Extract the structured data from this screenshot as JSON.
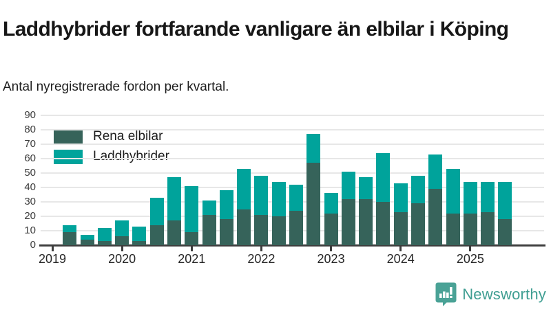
{
  "header": {
    "title": "Laddhybrider fortfarande vanligare än elbilar i Köping",
    "subtitle": "Antal nyregistrerade fordon per kvartal."
  },
  "chart_data": {
    "type": "bar",
    "stacked": true,
    "title": "Laddhybrider fortfarande vanligare än elbilar i Köping",
    "xlabel": "",
    "ylabel": "Antal nyregistrerade fordon per kvartal",
    "ylim": [
      0,
      90
    ],
    "grid": true,
    "legend_position": "inside-top-left",
    "categories": [
      "2019 Q2",
      "2019 Q3",
      "2019 Q4",
      "2020 Q1",
      "2020 Q2",
      "2020 Q3",
      "2020 Q4",
      "2021 Q1",
      "2021 Q2",
      "2021 Q3",
      "2021 Q4",
      "2022 Q1",
      "2022 Q2",
      "2022 Q3",
      "2022 Q4",
      "2023 Q1",
      "2023 Q2",
      "2023 Q3",
      "2023 Q4",
      "2024 Q1",
      "2024 Q2",
      "2024 Q3",
      "2024 Q4",
      "2025 Q1",
      "2025 Q2",
      "2025 Q3"
    ],
    "series": [
      {
        "name": "Rena elbilar",
        "color": "#36635a",
        "values": [
          9,
          4,
          3,
          6,
          3,
          14,
          17,
          9,
          21,
          18,
          25,
          21,
          20,
          24,
          57,
          22,
          32,
          32,
          30,
          23,
          29,
          39,
          22,
          22,
          23,
          18
        ]
      },
      {
        "name": "Laddhybrider",
        "color": "#00a39b",
        "values": [
          5,
          3,
          9,
          11,
          10,
          19,
          30,
          32,
          10,
          20,
          28,
          27,
          24,
          18,
          20,
          14,
          19,
          15,
          34,
          20,
          19,
          24,
          31,
          22,
          21,
          26
        ]
      }
    ],
    "totals": [
      14,
      7,
      12,
      17,
      13,
      33,
      47,
      41,
      31,
      38,
      53,
      48,
      44,
      42,
      77,
      36,
      51,
      47,
      64,
      43,
      48,
      63,
      53,
      44,
      44,
      44
    ],
    "y_ticks": [
      0,
      10,
      20,
      30,
      40,
      50,
      60,
      70,
      80,
      90
    ],
    "x_tick_labels": [
      "2019",
      "2020",
      "2021",
      "2022",
      "2023",
      "2024",
      "2025"
    ]
  },
  "footer": {
    "brand": "Newsworthy",
    "brand_color": "#3f9e92",
    "logo_icon": "speech-bubble-bar-chart-icon",
    "logo_color": "#4aa296"
  }
}
